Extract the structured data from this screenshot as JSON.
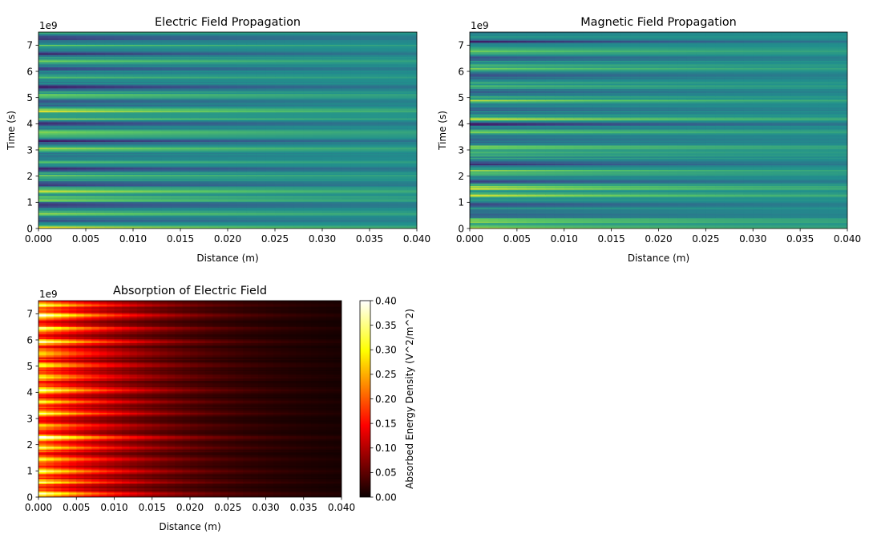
{
  "chart_data": [
    {
      "type": "heatmap",
      "title": "Electric Field Propagation",
      "xlabel": "Distance (m)",
      "ylabel": "Time (s)",
      "y_offset_label": "1e9",
      "xlim": [
        0.0,
        0.04
      ],
      "ylim": [
        0,
        7.5
      ],
      "xticks": [
        "0.000",
        "0.005",
        "0.010",
        "0.015",
        "0.020",
        "0.025",
        "0.030",
        "0.035",
        "0.040"
      ],
      "yticks": [
        "0",
        "1",
        "2",
        "3",
        "4",
        "5",
        "6",
        "7"
      ],
      "colormap": "viridis",
      "decay_length": 0.03,
      "bands": [
        {
          "y": 0.05,
          "v": 1.0
        },
        {
          "y": 0.35,
          "v": -0.5
        },
        {
          "y": 0.6,
          "v": 0.6
        },
        {
          "y": 0.9,
          "v": -0.7
        },
        {
          "y": 1.15,
          "v": 0.55
        },
        {
          "y": 1.45,
          "v": 0.85
        },
        {
          "y": 1.7,
          "v": -0.6
        },
        {
          "y": 2.0,
          "v": 0.45
        },
        {
          "y": 2.3,
          "v": -0.8
        },
        {
          "y": 2.55,
          "v": 0.5
        },
        {
          "y": 2.8,
          "v": -0.4
        },
        {
          "y": 3.05,
          "v": 0.6
        },
        {
          "y": 3.35,
          "v": -0.7
        },
        {
          "y": 3.7,
          "v": 0.5
        },
        {
          "y": 4.05,
          "v": -0.85
        },
        {
          "y": 4.2,
          "v": 0.55
        },
        {
          "y": 4.5,
          "v": 0.75
        },
        {
          "y": 4.8,
          "v": -0.5
        },
        {
          "y": 5.1,
          "v": 0.4
        },
        {
          "y": 5.45,
          "v": -0.75
        },
        {
          "y": 5.8,
          "v": 0.45
        },
        {
          "y": 6.1,
          "v": -0.4
        },
        {
          "y": 6.4,
          "v": 0.6
        },
        {
          "y": 6.7,
          "v": -0.85
        },
        {
          "y": 7.0,
          "v": 0.35
        },
        {
          "y": 7.3,
          "v": -0.65
        }
      ]
    },
    {
      "type": "heatmap",
      "title": "Magnetic Field Propagation",
      "xlabel": "Distance (m)",
      "ylabel": "Time (s)",
      "y_offset_label": "1e9",
      "xlim": [
        0.0,
        0.04
      ],
      "ylim": [
        0,
        7.5
      ],
      "xticks": [
        "0.000",
        "0.005",
        "0.010",
        "0.015",
        "0.020",
        "0.025",
        "0.030",
        "0.035",
        "0.040"
      ],
      "yticks": [
        "0",
        "1",
        "2",
        "3",
        "4",
        "5",
        "6",
        "7"
      ],
      "colormap": "viridis",
      "decay_length": 0.03,
      "bands": [
        {
          "y": 0.05,
          "v": 0.9
        },
        {
          "y": 0.3,
          "v": 0.6
        },
        {
          "y": 0.55,
          "v": -0.6
        },
        {
          "y": 0.95,
          "v": -0.75
        },
        {
          "y": 1.3,
          "v": 0.7
        },
        {
          "y": 1.55,
          "v": 0.8
        },
        {
          "y": 1.85,
          "v": -0.5
        },
        {
          "y": 2.2,
          "v": 0.5
        },
        {
          "y": 2.5,
          "v": -0.7
        },
        {
          "y": 2.85,
          "v": 0.45
        },
        {
          "y": 3.1,
          "v": 0.65
        },
        {
          "y": 3.4,
          "v": -0.6
        },
        {
          "y": 3.7,
          "v": 0.5
        },
        {
          "y": 4.0,
          "v": -0.75
        },
        {
          "y": 4.2,
          "v": 0.8
        },
        {
          "y": 4.55,
          "v": -0.45
        },
        {
          "y": 4.9,
          "v": 0.6
        },
        {
          "y": 5.25,
          "v": -0.55
        },
        {
          "y": 5.55,
          "v": 0.4
        },
        {
          "y": 5.85,
          "v": -0.8
        },
        {
          "y": 6.15,
          "v": 0.5
        },
        {
          "y": 6.5,
          "v": -0.6
        },
        {
          "y": 6.8,
          "v": 0.55
        },
        {
          "y": 7.15,
          "v": -0.7
        }
      ]
    },
    {
      "type": "heatmap",
      "title": "Absorption of Electric Field",
      "xlabel": "Distance (m)",
      "ylabel": "",
      "y_offset_label": "1e9",
      "xlim": [
        0.0,
        0.04
      ],
      "ylim": [
        0,
        7.5
      ],
      "xticks": [
        "0.000",
        "0.005",
        "0.010",
        "0.015",
        "0.020",
        "0.025",
        "0.030",
        "0.035",
        "0.040"
      ],
      "yticks": [
        "0",
        "1",
        "2",
        "3",
        "4",
        "5",
        "6",
        "7"
      ],
      "colormap": "hot",
      "decay_length": 0.012,
      "colorbar": {
        "label": "Absorbed Energy Density (V^2/m^2)",
        "range": [
          0.0,
          0.4
        ],
        "ticks": [
          "0.00",
          "0.05",
          "0.10",
          "0.15",
          "0.20",
          "0.25",
          "0.30",
          "0.35",
          "0.40"
        ]
      },
      "bands": [
        {
          "y": 0.15,
          "v": 0.3
        },
        {
          "y": 0.6,
          "v": 0.22
        },
        {
          "y": 1.0,
          "v": 0.26
        },
        {
          "y": 1.45,
          "v": 0.2
        },
        {
          "y": 1.9,
          "v": 0.28
        },
        {
          "y": 2.3,
          "v": 0.34
        },
        {
          "y": 2.75,
          "v": 0.18
        },
        {
          "y": 3.2,
          "v": 0.25
        },
        {
          "y": 3.65,
          "v": 0.2
        },
        {
          "y": 4.1,
          "v": 0.3
        },
        {
          "y": 4.6,
          "v": 0.24
        },
        {
          "y": 5.05,
          "v": 0.27
        },
        {
          "y": 5.5,
          "v": 0.2
        },
        {
          "y": 5.95,
          "v": 0.3
        },
        {
          "y": 6.45,
          "v": 0.26
        },
        {
          "y": 6.95,
          "v": 0.29
        },
        {
          "y": 7.35,
          "v": 0.24
        }
      ]
    }
  ]
}
